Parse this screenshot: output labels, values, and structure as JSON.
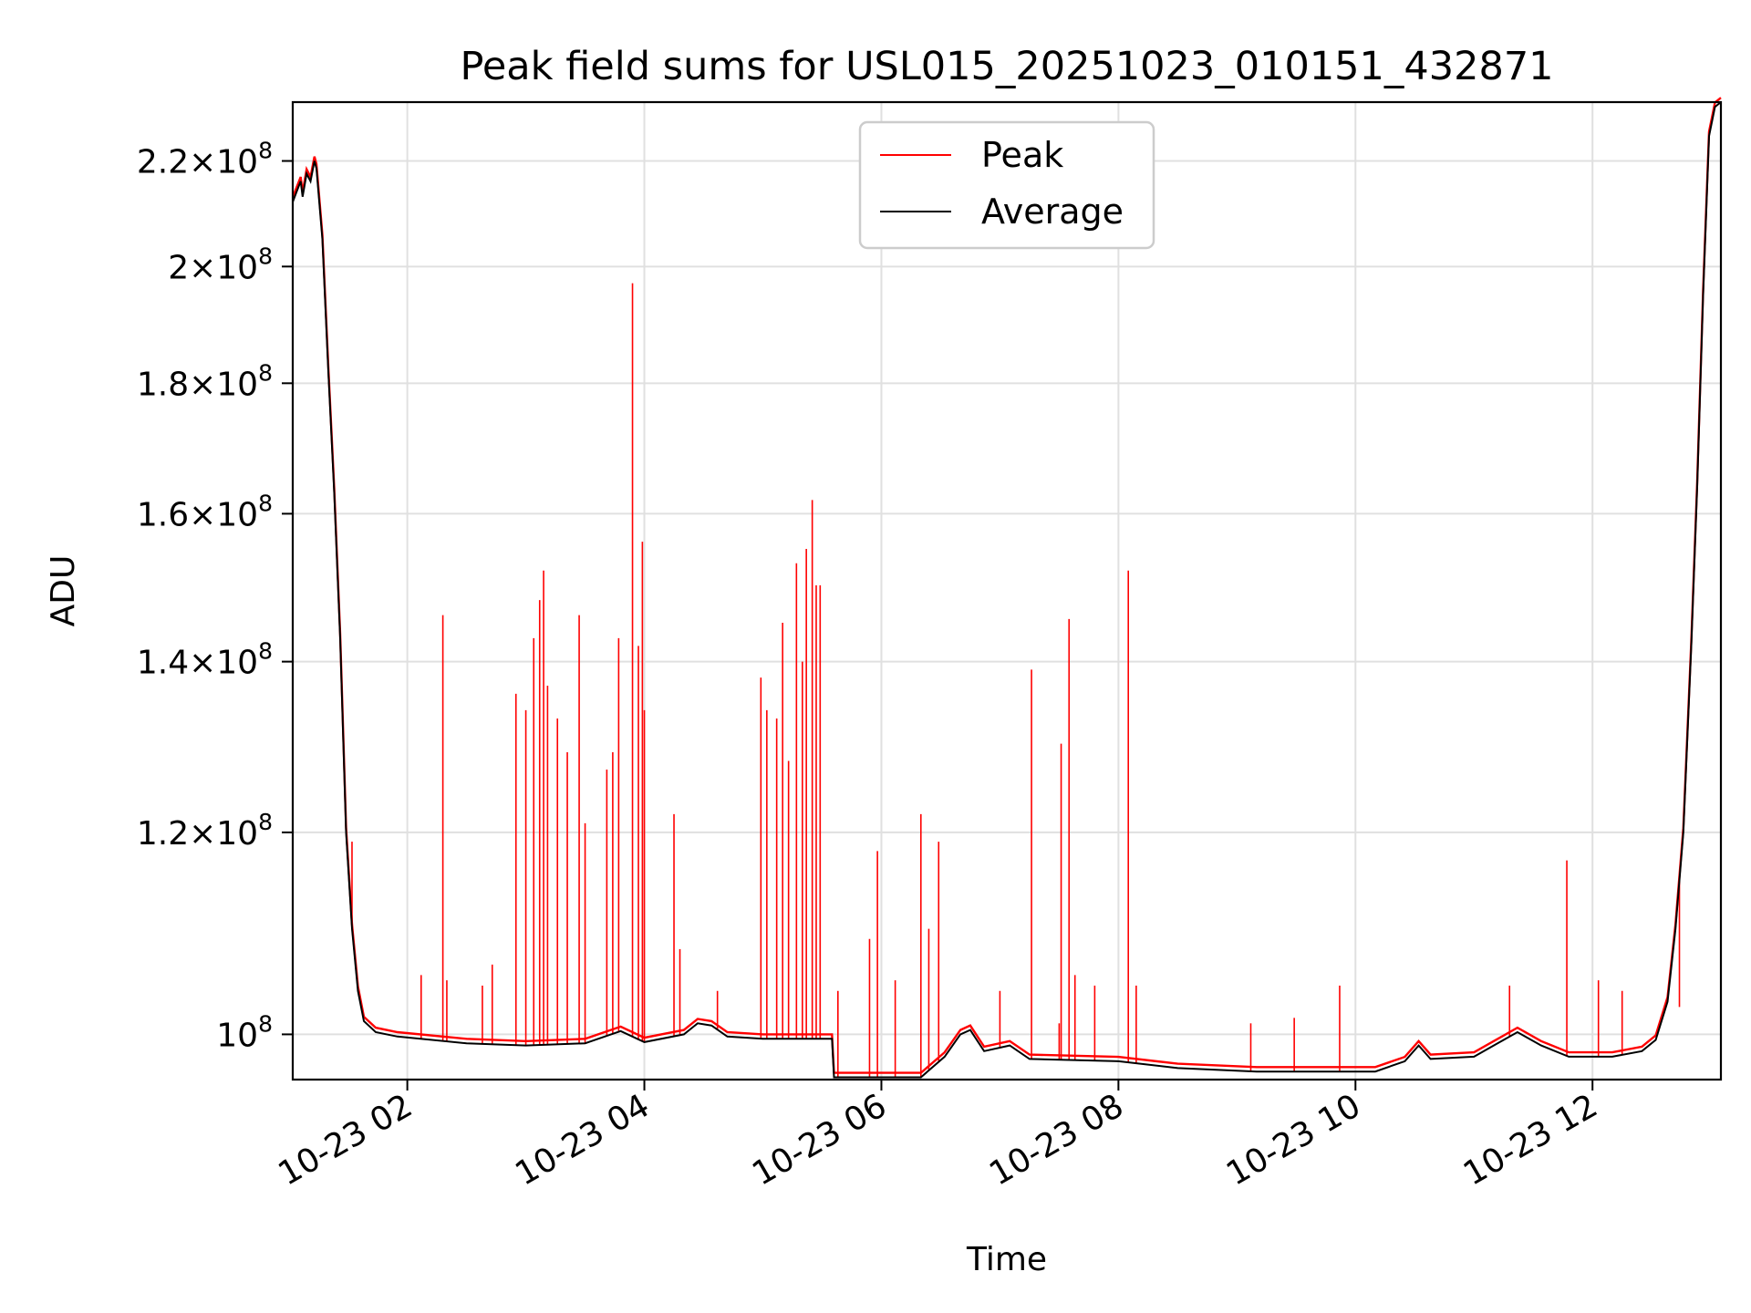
{
  "chart_data": {
    "type": "line",
    "title": "Peak field sums for USL015_20251023_010151_432871",
    "xlabel": "Time",
    "ylabel": "ADU",
    "y_scale": "log",
    "grid": true,
    "legend_placement": "upper-center",
    "xlim": [
      "2025-10-23 01:02",
      "2025-10-23 13:05"
    ],
    "ylim": [
      96000000,
      232000000
    ],
    "x_ticks": [
      {
        "value": "2025-10-23 02:00",
        "label": "10-23 02"
      },
      {
        "value": "2025-10-23 04:00",
        "label": "10-23 04"
      },
      {
        "value": "2025-10-23 06:00",
        "label": "10-23 06"
      },
      {
        "value": "2025-10-23 08:00",
        "label": "10-23 08"
      },
      {
        "value": "2025-10-23 10:00",
        "label": "10-23 10"
      },
      {
        "value": "2025-10-23 12:00",
        "label": "10-23 12"
      }
    ],
    "y_ticks": [
      {
        "value": 100000000,
        "mantissa": "",
        "exponent": "8"
      },
      {
        "value": 120000000,
        "mantissa": "1.2",
        "exponent": "8"
      },
      {
        "value": 140000000,
        "mantissa": "1.4",
        "exponent": "8"
      },
      {
        "value": 160000000,
        "mantissa": "1.6",
        "exponent": "8"
      },
      {
        "value": 180000000,
        "mantissa": "1.8",
        "exponent": "8"
      },
      {
        "value": 200000000,
        "mantissa": "2",
        "exponent": "8"
      },
      {
        "value": 220000000,
        "mantissa": "2.2",
        "exponent": "8"
      }
    ],
    "series": [
      {
        "name": "Peak",
        "color": "#ff0000",
        "spikes": [
          [
            "2025-10-23 01:32",
            119000000.0
          ],
          [
            "2025-10-23 02:07",
            105500000.0
          ],
          [
            "2025-10-23 02:20",
            105000000.0
          ],
          [
            "2025-10-23 02:18",
            146000000.0
          ],
          [
            "2025-10-23 02:38",
            104500000.0
          ],
          [
            "2025-10-23 02:43",
            106500000.0
          ],
          [
            "2025-10-23 02:55",
            136000000.0
          ],
          [
            "2025-10-23 03:00",
            134000000.0
          ],
          [
            "2025-10-23 03:04",
            143000000.0
          ],
          [
            "2025-10-23 03:07",
            148000000.0
          ],
          [
            "2025-10-23 03:09",
            152000000.0
          ],
          [
            "2025-10-23 03:11",
            137000000.0
          ],
          [
            "2025-10-23 03:16",
            133000000.0
          ],
          [
            "2025-10-23 03:21",
            129000000.0
          ],
          [
            "2025-10-23 03:27",
            146000000.0
          ],
          [
            "2025-10-23 03:30",
            121000000.0
          ],
          [
            "2025-10-23 03:41",
            127000000.0
          ],
          [
            "2025-10-23 03:44",
            129000000.0
          ],
          [
            "2025-10-23 03:47",
            143000000.0
          ],
          [
            "2025-10-23 03:54",
            197000000.0
          ],
          [
            "2025-10-23 03:57",
            142000000.0
          ],
          [
            "2025-10-23 03:59",
            156000000.0
          ],
          [
            "2025-10-23 04:00",
            134000000.0
          ],
          [
            "2025-10-23 04:15",
            122000000.0
          ],
          [
            "2025-10-23 04:18",
            108000000.0
          ],
          [
            "2025-10-23 04:37",
            104000000.0
          ],
          [
            "2025-10-23 04:59",
            138000000.0
          ],
          [
            "2025-10-23 05:02",
            134000000.0
          ],
          [
            "2025-10-23 05:07",
            133000000.0
          ],
          [
            "2025-10-23 05:10",
            145000000.0
          ],
          [
            "2025-10-23 05:13",
            128000000.0
          ],
          [
            "2025-10-23 05:17",
            153000000.0
          ],
          [
            "2025-10-23 05:20",
            140000000.0
          ],
          [
            "2025-10-23 05:22",
            155000000.0
          ],
          [
            "2025-10-23 05:25",
            162000000.0
          ],
          [
            "2025-10-23 05:27",
            150000000.0
          ],
          [
            "2025-10-23 05:29",
            150000000.0
          ],
          [
            "2025-10-23 05:38",
            104000000.0
          ],
          [
            "2025-10-23 05:54",
            109000000.0
          ],
          [
            "2025-10-23 05:58",
            118000000.0
          ],
          [
            "2025-10-23 06:07",
            105000000.0
          ],
          [
            "2025-10-23 06:20",
            122000000.0
          ],
          [
            "2025-10-23 06:24",
            110000000.0
          ],
          [
            "2025-10-23 06:29",
            119000000.0
          ],
          [
            "2025-10-23 06:40",
            100000000.0
          ],
          [
            "2025-10-23 07:00",
            104000000.0
          ],
          [
            "2025-10-23 07:16",
            139000000.0
          ],
          [
            "2025-10-23 07:30",
            101000000.0
          ],
          [
            "2025-10-23 07:31",
            130000000.0
          ],
          [
            "2025-10-23 07:35",
            145500000.0
          ],
          [
            "2025-10-23 07:38",
            105500000.0
          ],
          [
            "2025-10-23 07:48",
            104500000.0
          ],
          [
            "2025-10-23 08:05",
            152000000.0
          ],
          [
            "2025-10-23 08:09",
            104500000.0
          ],
          [
            "2025-10-23 09:07",
            101000000.0
          ],
          [
            "2025-10-23 09:29",
            101500000.0
          ],
          [
            "2025-10-23 09:52",
            104500000.0
          ],
          [
            "2025-10-23 11:18",
            104500000.0
          ],
          [
            "2025-10-23 11:47",
            117000000.0
          ],
          [
            "2025-10-23 12:03",
            105000000.0
          ],
          [
            "2025-10-23 12:15",
            104000000.0
          ],
          [
            "2025-10-23 12:38",
            103500000.0
          ],
          [
            "2025-10-23 12:44",
            102500000.0
          ]
        ]
      },
      {
        "name": "Average",
        "color": "#000000",
        "points": [
          [
            "2025-10-23 01:02",
            212000000.0
          ],
          [
            "2025-10-23 01:04",
            214000000.0
          ],
          [
            "2025-10-23 01:06",
            216000000.0
          ],
          [
            "2025-10-23 01:07",
            213000000.0
          ],
          [
            "2025-10-23 01:09",
            217500000.0
          ],
          [
            "2025-10-23 01:11",
            216000000.0
          ],
          [
            "2025-10-23 01:13",
            220000000.0
          ],
          [
            "2025-10-23 01:14",
            218500000.0
          ],
          [
            "2025-10-23 01:17",
            205000000.0
          ],
          [
            "2025-10-23 01:20",
            182000000.0
          ],
          [
            "2025-10-23 01:23",
            163000000.0
          ],
          [
            "2025-10-23 01:26",
            143000000.0
          ],
          [
            "2025-10-23 01:29",
            120000000.0
          ],
          [
            "2025-10-23 01:32",
            110000000.0
          ],
          [
            "2025-10-23 01:35",
            104000000.0
          ],
          [
            "2025-10-23 01:38",
            101200000.0
          ],
          [
            "2025-10-23 01:44",
            100200000.0
          ],
          [
            "2025-10-23 01:55",
            99800000.0
          ],
          [
            "2025-10-23 02:30",
            99200000.0
          ],
          [
            "2025-10-23 03:00",
            99000000.0
          ],
          [
            "2025-10-23 03:30",
            99200000.0
          ],
          [
            "2025-10-23 03:48",
            100300000.0
          ],
          [
            "2025-10-23 04:00",
            99300000.0
          ],
          [
            "2025-10-23 04:20",
            100000000.0
          ],
          [
            "2025-10-23 04:27",
            101000000.0
          ],
          [
            "2025-10-23 04:34",
            100800000.0
          ],
          [
            "2025-10-23 04:42",
            99800000.0
          ],
          [
            "2025-10-23 05:00",
            99600000.0
          ],
          [
            "2025-10-23 05:35",
            99600000.0
          ],
          [
            "2025-10-23 05:36",
            96200000.0
          ],
          [
            "2025-10-23 06:20",
            96200000.0
          ],
          [
            "2025-10-23 06:32",
            98000000.0
          ],
          [
            "2025-10-23 06:40",
            100000000.0
          ],
          [
            "2025-10-23 06:45",
            100400000.0
          ],
          [
            "2025-10-23 06:52",
            98500000.0
          ],
          [
            "2025-10-23 07:05",
            99000000.0
          ],
          [
            "2025-10-23 07:15",
            97800000.0
          ],
          [
            "2025-10-23 08:00",
            97600000.0
          ],
          [
            "2025-10-23 08:30",
            97000000.0
          ],
          [
            "2025-10-23 09:10",
            96700000.0
          ],
          [
            "2025-10-23 10:10",
            96700000.0
          ],
          [
            "2025-10-23 10:25",
            97600000.0
          ],
          [
            "2025-10-23 10:32",
            99000000.0
          ],
          [
            "2025-10-23 10:38",
            97800000.0
          ],
          [
            "2025-10-23 11:00",
            98000000.0
          ],
          [
            "2025-10-23 11:10",
            99000000.0
          ],
          [
            "2025-10-23 11:22",
            100200000.0
          ],
          [
            "2025-10-23 11:34",
            99000000.0
          ],
          [
            "2025-10-23 11:48",
            98000000.0
          ],
          [
            "2025-10-23 12:10",
            98000000.0
          ],
          [
            "2025-10-23 12:25",
            98500000.0
          ],
          [
            "2025-10-23 12:32",
            99500000.0
          ],
          [
            "2025-10-23 12:38",
            103000000.0
          ],
          [
            "2025-10-23 12:42",
            110000000.0
          ],
          [
            "2025-10-23 12:46",
            120000000.0
          ],
          [
            "2025-10-23 12:50",
            142000000.0
          ],
          [
            "2025-10-23 12:53",
            164000000.0
          ],
          [
            "2025-10-23 12:56",
            195000000.0
          ],
          [
            "2025-10-23 12:59",
            225000000.0
          ],
          [
            "2025-10-23 13:02",
            231000000.0
          ],
          [
            "2025-10-23 13:05",
            232000000.0
          ]
        ]
      }
    ]
  }
}
